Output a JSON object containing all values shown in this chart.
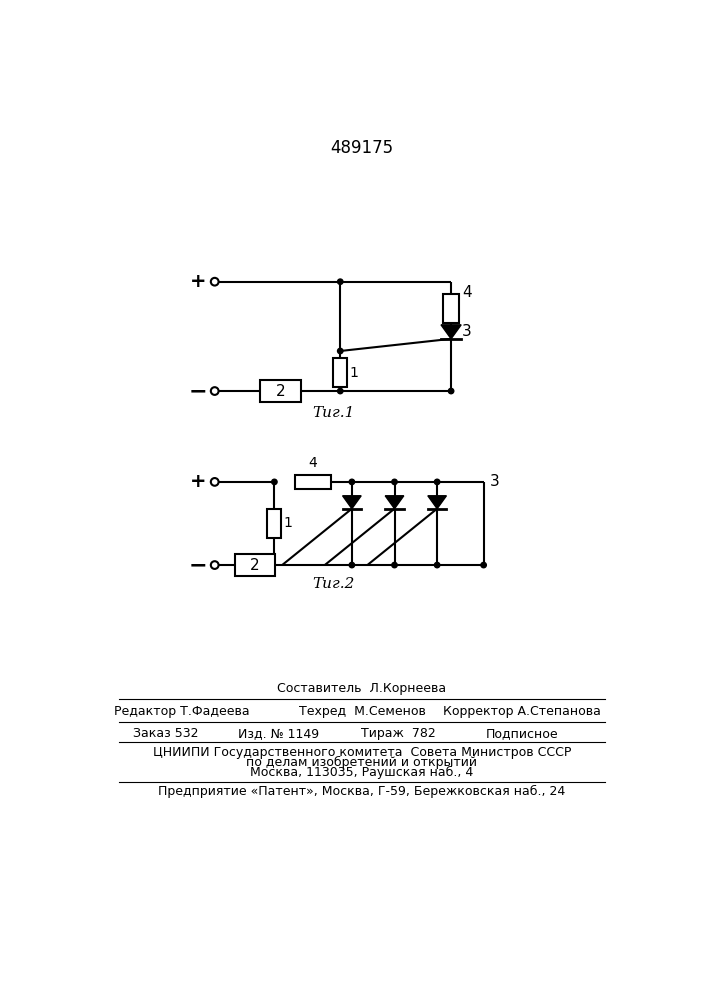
{
  "patent_number": "489175",
  "fig1_label": "Τиг.1",
  "fig2_label": "Τиг.2",
  "footer_sestavitel": "Составитель  Л.Корнеева",
  "footer_redaktor": "Редактор Т.Фадеева",
  "footer_tehred": "Техред  М.Семенов",
  "footer_korrektor": "Корректор А.Степанова",
  "footer_zakaz": "Заказ 532",
  "footer_izd": "Изд. № 1149",
  "footer_tirazh": "Тираж  782",
  "footer_podpisnoe": "Подписное",
  "footer_cnipi1": "ЦНИИПИ Государственного комитета  Совета Министров СССР",
  "footer_cnipi2": "по делам изобретений и открытий",
  "footer_cnipi3": "Москва, 113035, Раушская наб., 4",
  "footer_predpr": "Предприятие «Патент», Москва, Г-59, Бережковская наб., 24",
  "bg_color": "#ffffff"
}
